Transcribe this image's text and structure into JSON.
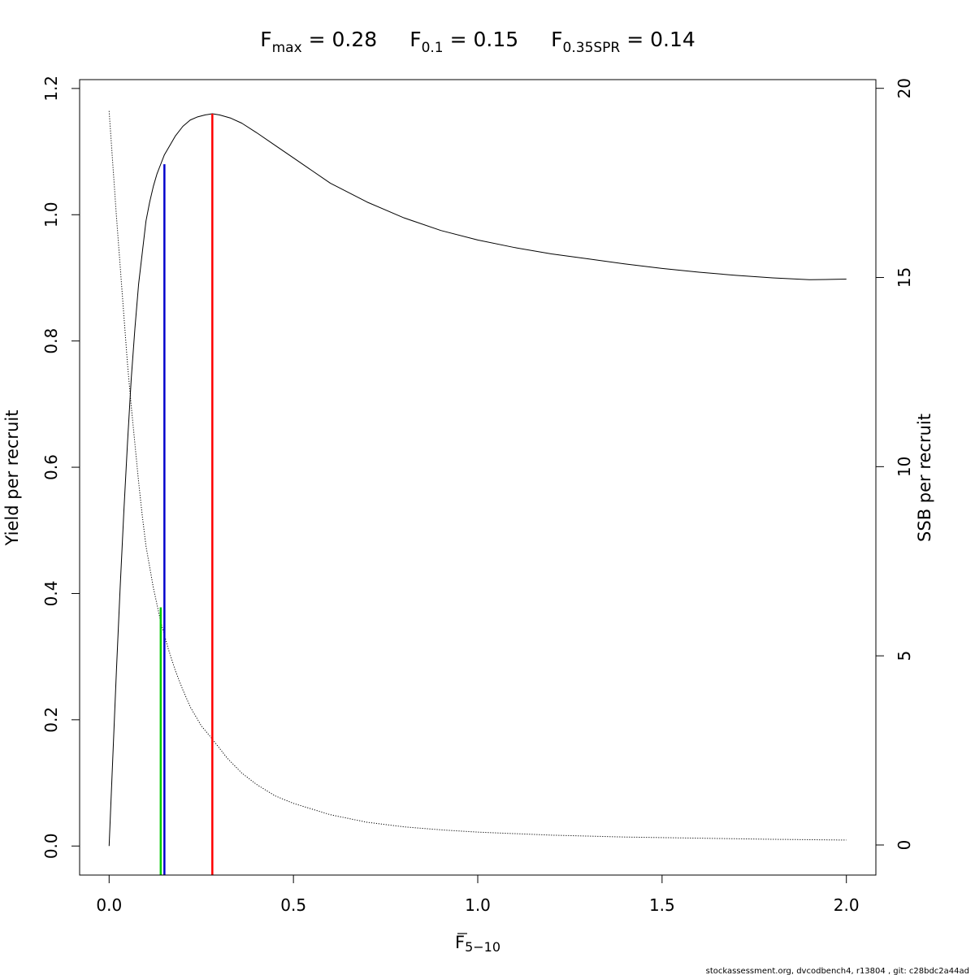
{
  "chart_data": {
    "type": "line",
    "title": {
      "items": [
        {
          "main": "F",
          "sub": "max",
          "rest": " = 0.28"
        },
        {
          "main": "F",
          "sub": "0.1",
          "rest": " = 0.15"
        },
        {
          "main": "F",
          "sub": "0.35SPR",
          "rest": " = 0.14"
        }
      ]
    },
    "xlabel": {
      "main": "F",
      "sub": "5−10",
      "overline": true
    },
    "ylabel": "Yield per recruit",
    "y2label": "SSB per recruit",
    "xlim": [
      -0.08,
      2.08
    ],
    "ylim": [
      -0.046,
      1.214
    ],
    "y2lim": [
      -0.795,
      20.23
    ],
    "xticks": [
      0.0,
      0.5,
      1.0,
      1.5,
      2.0
    ],
    "xtick_labels": [
      "0.0",
      "0.5",
      "1.0",
      "1.5",
      "2.0"
    ],
    "yticks": [
      0.0,
      0.2,
      0.4,
      0.6,
      0.8,
      1.0,
      1.2
    ],
    "ytick_labels": [
      "0.0",
      "0.2",
      "0.4",
      "0.6",
      "0.8",
      "1.0",
      "1.2"
    ],
    "y2ticks": [
      0,
      5,
      10,
      15,
      20
    ],
    "y2tick_labels": [
      "0",
      "5",
      "10",
      "15",
      "20"
    ],
    "grid": false,
    "legend": "none",
    "series": [
      {
        "axis": "left",
        "style": "solid",
        "color": "#000000",
        "x": [
          0,
          0.01,
          0.02,
          0.03,
          0.04,
          0.05,
          0.06,
          0.07,
          0.08,
          0.09,
          0.1,
          0.11,
          0.12,
          0.13,
          0.14,
          0.15,
          0.16,
          0.18,
          0.2,
          0.22,
          0.24,
          0.26,
          0.28,
          0.3,
          0.33,
          0.36,
          0.4,
          0.45,
          0.5,
          0.6,
          0.7,
          0.8,
          0.9,
          1.0,
          1.1,
          1.2,
          1.3,
          1.4,
          1.5,
          1.6,
          1.7,
          1.8,
          1.9,
          2.0
        ],
        "y": [
          0.0,
          0.14,
          0.28,
          0.41,
          0.53,
          0.64,
          0.74,
          0.82,
          0.89,
          0.94,
          0.99,
          1.02,
          1.045,
          1.065,
          1.08,
          1.095,
          1.105,
          1.125,
          1.14,
          1.15,
          1.155,
          1.158,
          1.16,
          1.158,
          1.153,
          1.145,
          1.13,
          1.11,
          1.09,
          1.05,
          1.02,
          0.995,
          0.975,
          0.96,
          0.948,
          0.938,
          0.93,
          0.922,
          0.915,
          0.909,
          0.904,
          0.9,
          0.897,
          0.898
        ]
      },
      {
        "axis": "right",
        "style": "dotted",
        "color": "#000000",
        "x": [
          0,
          0.01,
          0.02,
          0.03,
          0.04,
          0.05,
          0.06,
          0.07,
          0.08,
          0.09,
          0.1,
          0.12,
          0.14,
          0.16,
          0.18,
          0.2,
          0.22,
          0.25,
          0.28,
          0.32,
          0.36,
          0.4,
          0.45,
          0.5,
          0.6,
          0.7,
          0.8,
          0.9,
          1.0,
          1.2,
          1.4,
          1.6,
          1.8,
          2.0
        ],
        "y": [
          19.4,
          18.0,
          16.6,
          15.3,
          14.0,
          12.7,
          11.6,
          10.6,
          9.6,
          8.7,
          7.9,
          6.8,
          5.9,
          5.2,
          4.6,
          4.1,
          3.65,
          3.15,
          2.8,
          2.3,
          1.9,
          1.6,
          1.3,
          1.1,
          0.8,
          0.6,
          0.48,
          0.4,
          0.34,
          0.26,
          0.21,
          0.18,
          0.15,
          0.13
        ]
      }
    ],
    "reference_lines": [
      {
        "name": "F0.35SPR",
        "x": 0.14,
        "y_top": 0.378,
        "color": "#00cd00"
      },
      {
        "name": "F0.1",
        "x": 0.15,
        "y_top": 1.08,
        "color": "#0000cd"
      },
      {
        "name": "Fmax",
        "x": 0.28,
        "y_top": 1.16,
        "color": "#ff0000"
      }
    ]
  },
  "footer": "stockassessment.org, dvcodbench4, r13804 , git: c28bdc2a44ad"
}
